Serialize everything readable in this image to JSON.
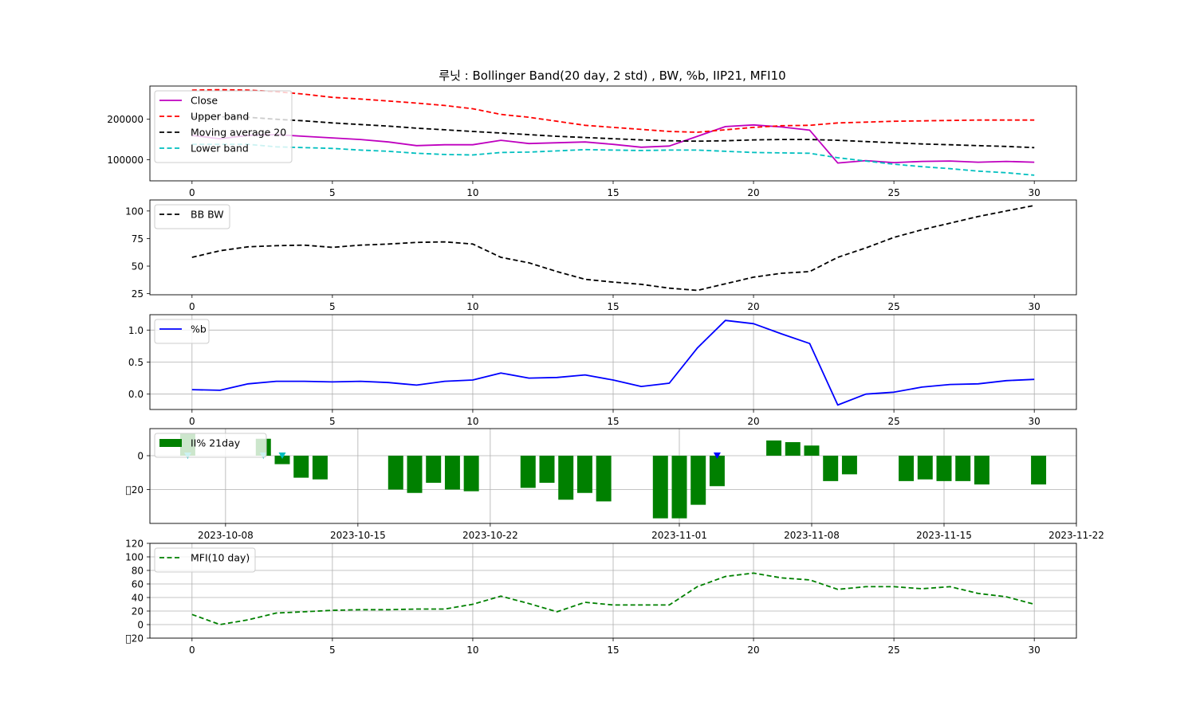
{
  "title": "루닛 : Bollinger Band(20 day, 2 std) , BW, %b, IIP21, MFI10",
  "colors": {
    "close": "#bf00bf",
    "upper": "#ff0000",
    "ma": "#000000",
    "lower": "#00bfbf",
    "pb": "#0000ff",
    "iip": "#008000",
    "mfi": "#008000",
    "grid": "#b0b0b0",
    "marker_cyan": "#00bfbf",
    "marker_blue": "#0000ff"
  },
  "chart_data": [
    {
      "type": "line",
      "x": [
        0,
        1,
        2,
        3,
        4,
        5,
        6,
        7,
        8,
        9,
        10,
        11,
        12,
        13,
        14,
        15,
        16,
        17,
        18,
        19,
        20,
        21,
        22,
        23,
        24,
        25,
        26,
        27,
        28,
        29,
        30
      ],
      "xlim": [
        -1.5,
        31.5
      ],
      "ylim": [
        48000,
        282000
      ],
      "xticks": [
        0,
        5,
        10,
        15,
        20,
        25,
        30
      ],
      "yticks": [
        100000,
        200000
      ],
      "grid": false,
      "legend_position": "top-left",
      "series": [
        {
          "name": "Close",
          "key": "close",
          "dash": false,
          "values": [
            160000,
            152000,
            160000,
            162000,
            158000,
            154000,
            150000,
            144000,
            135000,
            137000,
            137000,
            148000,
            140000,
            142000,
            144000,
            138000,
            131000,
            134000,
            158000,
            182000,
            186000,
            181000,
            173000,
            92000,
            98000,
            93000,
            96000,
            97000,
            94000,
            96000,
            94000
          ]
        },
        {
          "name": "Upper band",
          "key": "upper",
          "dash": true,
          "values": [
            272000,
            273000,
            272000,
            268000,
            262000,
            254000,
            250000,
            245000,
            240000,
            234000,
            226000,
            212000,
            205000,
            195000,
            185000,
            180000,
            175000,
            170000,
            168000,
            174000,
            180000,
            184000,
            185000,
            191000,
            193000,
            195000,
            196000,
            197000,
            198000,
            198000,
            198000
          ]
        },
        {
          "name": "Moving average 20",
          "key": "ma",
          "dash": true,
          "values": [
            205000,
            206000,
            205000,
            200000,
            196000,
            191000,
            187000,
            183000,
            178000,
            174000,
            170000,
            166000,
            162000,
            158000,
            155000,
            152000,
            149000,
            147000,
            146000,
            147000,
            149000,
            150000,
            150000,
            148000,
            145000,
            142000,
            139000,
            137000,
            135000,
            133000,
            130000
          ]
        },
        {
          "name": "Lower band",
          "key": "lower",
          "dash": true,
          "values": [
            138000,
            138000,
            138000,
            132000,
            130000,
            128000,
            124000,
            121000,
            116000,
            113000,
            112000,
            118000,
            119000,
            122000,
            125000,
            124000,
            123000,
            124000,
            124000,
            121000,
            118000,
            117000,
            116000,
            105000,
            97000,
            89000,
            83000,
            78000,
            72000,
            68000,
            62000
          ]
        }
      ]
    },
    {
      "type": "line",
      "x": [
        0,
        1,
        2,
        3,
        4,
        5,
        6,
        7,
        8,
        9,
        10,
        11,
        12,
        13,
        14,
        15,
        16,
        17,
        18,
        19,
        20,
        21,
        22,
        23,
        24,
        25,
        26,
        27,
        28,
        29,
        30
      ],
      "xlim": [
        -1.5,
        31.5
      ],
      "ylim": [
        24,
        110
      ],
      "xticks": [
        0,
        5,
        10,
        15,
        20,
        25,
        30
      ],
      "yticks": [
        25,
        50,
        75,
        100
      ],
      "grid": false,
      "legend_position": "top-left",
      "series": [
        {
          "name": "BB BW",
          "key": "ma",
          "dash": true,
          "values": [
            58,
            64,
            67.5,
            68.5,
            69,
            67,
            69,
            70,
            71.5,
            72,
            70,
            58,
            53,
            45,
            38,
            35.5,
            33.5,
            30,
            28,
            34,
            40,
            43.5,
            45,
            58,
            66.5,
            76,
            83,
            89,
            95,
            100,
            105
          ]
        }
      ]
    },
    {
      "type": "line",
      "x": [
        0,
        1,
        2,
        3,
        4,
        5,
        6,
        7,
        8,
        9,
        10,
        11,
        12,
        13,
        14,
        15,
        16,
        17,
        18,
        19,
        20,
        21,
        22,
        23,
        24,
        25,
        26,
        27,
        28,
        29,
        30
      ],
      "xlim": [
        -1.5,
        31.5
      ],
      "ylim": [
        -0.24,
        1.24
      ],
      "xticks": [
        0,
        5,
        10,
        15,
        20,
        25,
        30
      ],
      "yticks": [
        0.0,
        0.5,
        1.0
      ],
      "ytick_labels": [
        "0.0",
        "0.5",
        "1.0"
      ],
      "grid": true,
      "legend_position": "top-left",
      "series": [
        {
          "name": "%b",
          "key": "pb",
          "dash": false,
          "values": [
            0.07,
            0.06,
            0.16,
            0.2,
            0.2,
            0.19,
            0.2,
            0.18,
            0.14,
            0.2,
            0.22,
            0.33,
            0.25,
            0.26,
            0.3,
            0.22,
            0.12,
            0.17,
            0.72,
            1.15,
            1.1,
            0.94,
            0.79,
            -0.17,
            0,
            0.03,
            0.11,
            0.15,
            0.16,
            0.21,
            0.23
          ]
        }
      ]
    },
    {
      "type": "bar",
      "x_axis": "date",
      "xlim": [
        "2023-10-04",
        "2023-11-22"
      ],
      "ylim": [
        -40,
        16
      ],
      "xticks": [
        "2023-10-08",
        "2023-10-15",
        "2023-10-22",
        "2023-11-01",
        "2023-11-08",
        "2023-11-15",
        "2023-11-22"
      ],
      "yticks": [
        0,
        -20
      ],
      "ytick_labels": [
        "0",
        "\u000020"
      ],
      "grid": true,
      "legend_position": "top-left",
      "series": [
        {
          "name": "II% 21day",
          "key": "iip",
          "x": [
            "2023-10-06",
            "2023-10-10",
            "2023-10-11",
            "2023-10-12",
            "2023-10-13",
            "2023-10-17",
            "2023-10-18",
            "2023-10-19",
            "2023-10-20",
            "2023-10-21",
            "2023-10-24",
            "2023-10-25",
            "2023-10-26",
            "2023-10-27",
            "2023-10-28",
            "2023-10-31",
            "2023-11-01",
            "2023-11-02",
            "2023-11-03",
            "2023-11-06",
            "2023-11-07",
            "2023-11-08",
            "2023-11-09",
            "2023-11-10",
            "2023-11-13",
            "2023-11-14",
            "2023-11-15",
            "2023-11-16",
            "2023-11-17",
            "2023-11-20"
          ],
          "values": [
            13,
            10,
            -5,
            -13,
            -14,
            -20,
            -22,
            -16,
            -20,
            -21,
            -19,
            -16,
            -26,
            -22,
            -27,
            -37,
            -37,
            -29,
            -18,
            9,
            8,
            6,
            -15,
            -11,
            -15,
            -14,
            -15,
            -15,
            -17,
            -17
          ]
        }
      ],
      "markers": [
        {
          "x": "2023-10-06",
          "y": 0,
          "color_key": "marker_cyan"
        },
        {
          "x": "2023-10-10",
          "y": 0,
          "color_key": "marker_cyan"
        },
        {
          "x": "2023-10-11",
          "y": 0,
          "color_key": "marker_cyan"
        },
        {
          "x": "2023-11-03",
          "y": 0,
          "color_key": "marker_blue"
        }
      ]
    },
    {
      "type": "line",
      "x": [
        0,
        1,
        2,
        3,
        4,
        5,
        6,
        7,
        8,
        9,
        10,
        11,
        12,
        13,
        14,
        15,
        16,
        17,
        18,
        19,
        20,
        21,
        22,
        23,
        24,
        25,
        26,
        27,
        28,
        29,
        30
      ],
      "xlim": [
        -1.5,
        31.5
      ],
      "ylim": [
        -20,
        120
      ],
      "xticks": [
        0,
        5,
        10,
        15,
        20,
        25,
        30
      ],
      "yticks": [
        -20,
        0,
        20,
        40,
        60,
        80,
        100,
        120
      ],
      "ytick_labels": [
        "\u000020",
        "0",
        "20",
        "40",
        "60",
        "80",
        "100",
        "120"
      ],
      "grid": true,
      "legend_position": "top-left",
      "series": [
        {
          "name": "MFI(10 day)",
          "key": "mfi",
          "dash": true,
          "values": [
            15,
            0,
            7,
            17,
            19,
            21,
            22,
            22,
            23,
            23,
            30,
            42,
            31,
            19,
            33,
            29,
            29,
            29,
            56,
            71,
            76,
            69,
            66,
            52,
            56,
            56,
            53,
            56,
            46,
            41,
            30
          ]
        }
      ]
    }
  ]
}
